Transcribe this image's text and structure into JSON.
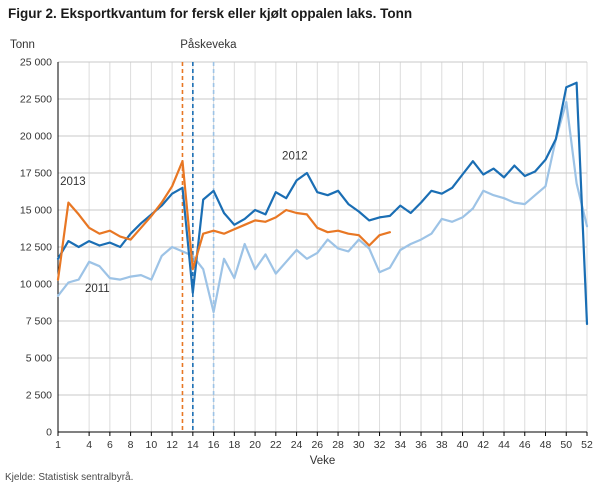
{
  "page": {
    "title": "Figur 2. Eksportkvantum for fersk eller kjølt oppalen laks. Tonn",
    "source": "Kjelde: Statistisk sentralbyrå."
  },
  "chart_data": {
    "type": "line",
    "title": "Figur 2. Eksportkvantum for fersk eller kjølt oppalen laks. Tonn",
    "ylabel": "Tonn",
    "xlabel": "Veke",
    "ylim": [
      0,
      25000
    ],
    "y_tick_step": 2500,
    "x_max": 52,
    "x_ticks": [
      1,
      4,
      6,
      8,
      10,
      12,
      14,
      16,
      18,
      20,
      22,
      24,
      26,
      28,
      30,
      32,
      34,
      36,
      38,
      40,
      42,
      44,
      46,
      48,
      50,
      52
    ],
    "grid": "on",
    "legend_position": "inline-labels",
    "annotation": {
      "label": "Påskeveka",
      "label_week": 15.5,
      "lines": [
        {
          "series": "2013",
          "week": 13,
          "color": "#e87724",
          "style": "dashed"
        },
        {
          "series": "2012",
          "week": 14,
          "color": "#1a6eb4",
          "style": "dashed"
        },
        {
          "series": "2011",
          "week": 16,
          "color": "#9dc3e6",
          "style": "dashed"
        }
      ]
    },
    "series": [
      {
        "name": "2011",
        "color": "#9dc3e6",
        "start_week": 1,
        "values": [
          9200,
          10100,
          10300,
          11500,
          11200,
          10400,
          10300,
          10500,
          10600,
          10300,
          11900,
          12500,
          12200,
          11900,
          11000,
          8100,
          11700,
          10400,
          12700,
          11000,
          12000,
          10700,
          11500,
          12300,
          11700,
          12100,
          13000,
          12400,
          12200,
          13000,
          12400,
          10800,
          11100,
          12300,
          12700,
          13000,
          13400,
          14400,
          14200,
          14500,
          15100,
          16300,
          16000,
          15800,
          15500,
          15400,
          16000,
          16600,
          19800,
          22300,
          16800,
          13900
        ]
      },
      {
        "name": "2012",
        "color": "#1a6eb4",
        "start_week": 1,
        "values": [
          11700,
          12900,
          12500,
          12900,
          12600,
          12800,
          12500,
          13400,
          14100,
          14700,
          15300,
          16100,
          16500,
          9400,
          15700,
          16300,
          14800,
          14000,
          14400,
          15000,
          14700,
          16200,
          15800,
          17000,
          17500,
          16200,
          16000,
          16300,
          15400,
          14900,
          14300,
          14500,
          14600,
          15300,
          14800,
          15500,
          16300,
          16100,
          16500,
          17400,
          18300,
          17400,
          17800,
          17200,
          18000,
          17300,
          17600,
          18400,
          19800,
          23300,
          23600,
          7300
        ]
      },
      {
        "name": "2013",
        "color": "#e87724",
        "start_week": 1,
        "values": [
          10300,
          15500,
          14700,
          13800,
          13400,
          13600,
          13200,
          13000,
          13800,
          14600,
          15500,
          16600,
          18300,
          11000,
          13400,
          13600,
          13400,
          13700,
          14000,
          14300,
          14200,
          14500,
          15000,
          14800,
          14700,
          13800,
          13500,
          13600,
          13400,
          13300,
          12600,
          13300,
          13500
        ]
      }
    ],
    "series_labels": [
      {
        "text": "2013",
        "week": 1.2,
        "value": 16700
      },
      {
        "text": "2012",
        "week": 22.6,
        "value": 18400
      },
      {
        "text": "2011",
        "week": 3.6,
        "value": 9450
      }
    ]
  }
}
